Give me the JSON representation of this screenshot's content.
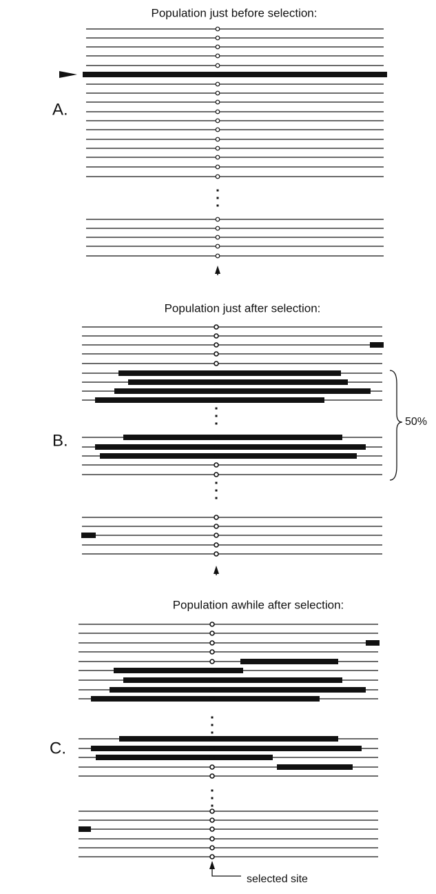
{
  "panels": [
    {
      "label": "A.",
      "title": "Population just before selection:"
    },
    {
      "label": "B.",
      "title": "Population just  after selection:"
    },
    {
      "label": "C.",
      "title": "Population awhile after selection:"
    }
  ],
  "brace_label": "50%",
  "site_label": "selected site"
}
